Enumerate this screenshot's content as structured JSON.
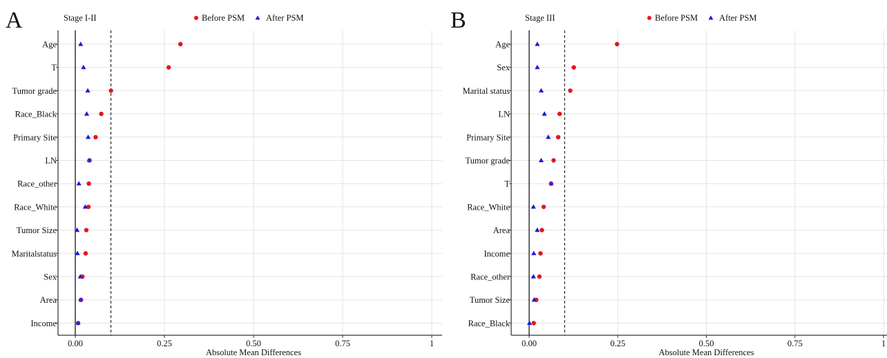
{
  "colors": {
    "before": "#e8141c",
    "after": "#1a1adf",
    "overlap": "#7a1fa8"
  },
  "legend": {
    "before_label": "Before PSM",
    "after_label": "After PSM"
  },
  "chart_data": [
    {
      "type": "scatter",
      "panel_letter": "A",
      "subtitle": "Stage I-II",
      "xlabel": "Absolute Mean Differences",
      "xlim": [
        0,
        1
      ],
      "xticks": [
        "0.00",
        "0.25",
        "0.50",
        "0.75",
        "1"
      ],
      "threshold": 0.1,
      "grid": true,
      "categories": [
        "Age",
        "T",
        "Tumor grade",
        "Race_Black",
        "Primary Site",
        "LN",
        "Race_other",
        "Race_White",
        "Tumor Size",
        "Maritalstatus",
        "Sex",
        "Area",
        "Income"
      ],
      "series": [
        {
          "name": "Before PSM",
          "values": [
            0.295,
            0.262,
            0.1,
            0.073,
            0.057,
            0.04,
            0.038,
            0.037,
            0.031,
            0.029,
            0.02,
            0.016,
            0.008
          ]
        },
        {
          "name": "After PSM",
          "values": [
            0.015,
            0.023,
            0.035,
            0.032,
            0.036,
            0.038,
            0.01,
            0.028,
            0.005,
            0.006,
            0.014,
            0.014,
            0.008
          ]
        }
      ]
    },
    {
      "type": "scatter",
      "panel_letter": "B",
      "subtitle": "Stage III",
      "xlabel": "Absolute Mean Differences",
      "xlim": [
        0,
        1
      ],
      "xticks": [
        "0.00",
        "0.25",
        "0.50",
        "0.75",
        "1"
      ],
      "threshold": 0.1,
      "grid": true,
      "categories": [
        "Age",
        "Sex",
        "Marital status",
        "LN",
        "Primary Site",
        "Tumor grade",
        "T",
        "Race_White",
        "Area",
        "Income",
        "Race_other",
        "Tumor Size",
        "Race_Black"
      ],
      "series": [
        {
          "name": "Before PSM",
          "values": [
            0.248,
            0.126,
            0.116,
            0.086,
            0.082,
            0.069,
            0.062,
            0.041,
            0.036,
            0.032,
            0.029,
            0.02,
            0.013
          ]
        },
        {
          "name": "After PSM",
          "values": [
            0.023,
            0.023,
            0.034,
            0.043,
            0.054,
            0.034,
            0.062,
            0.012,
            0.023,
            0.013,
            0.012,
            0.014,
            0.001
          ]
        }
      ]
    }
  ]
}
